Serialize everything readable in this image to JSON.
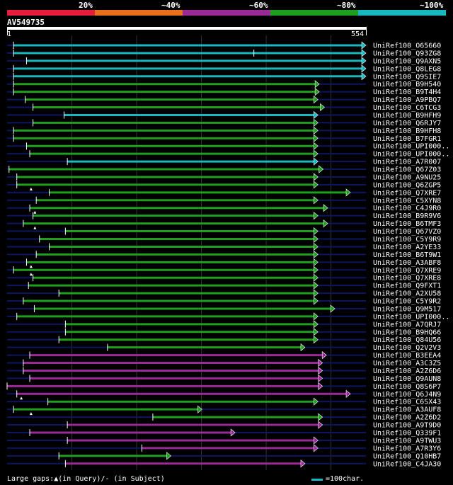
{
  "legend": [
    {
      "label": "20%",
      "color": "#e61e3c"
    },
    {
      "label": "~40%",
      "color": "#e8701e"
    },
    {
      "label": "~60%",
      "color": "#9a2a98"
    },
    {
      "label": "~80%",
      "color": "#1ea01e"
    },
    {
      "label": "~100%",
      "color": "#19b8bf"
    }
  ],
  "query": {
    "title": "AV549735",
    "start": "1",
    "end": "554",
    "length": 554
  },
  "colors": {
    "cyan": "#19b8bf",
    "green": "#1ea01e",
    "purple": "#9a2a98",
    "navy": "#0d1660",
    "grid": "#333333"
  },
  "hits": [
    {
      "name": "UniRef100_O65660",
      "start": 10,
      "end": 554,
      "color": "cyan"
    },
    {
      "name": "UniRef100_Q93ZG8",
      "start": 10,
      "end": 554,
      "color": "cyan",
      "mark": 381
    },
    {
      "name": "UniRef100_Q9AXN5",
      "start": 30,
      "end": 554,
      "color": "cyan"
    },
    {
      "name": "UniRef100_Q8LEG8",
      "start": 10,
      "end": 554,
      "color": "cyan"
    },
    {
      "name": "UniRef100_Q9SIE7",
      "start": 10,
      "end": 554,
      "color": "cyan"
    },
    {
      "name": "UniRef100_B9H540",
      "start": 10,
      "end": 482,
      "color": "green"
    },
    {
      "name": "UniRef100_B9T4H4",
      "start": 10,
      "end": 482,
      "color": "green"
    },
    {
      "name": "UniRef100_A9PBQ7",
      "start": 28,
      "end": 480,
      "color": "green"
    },
    {
      "name": "UniRef100_C6TCG3",
      "start": 40,
      "end": 490,
      "color": "green"
    },
    {
      "name": "UniRef100_B9HFH9",
      "start": 88,
      "end": 480,
      "color": "cyan"
    },
    {
      "name": "UniRef100_Q6RJY7",
      "start": 40,
      "end": 480,
      "color": "green"
    },
    {
      "name": "UniRef100_B9HFH8",
      "start": 10,
      "end": 480,
      "color": "green"
    },
    {
      "name": "UniRef100_B7FGR1",
      "start": 10,
      "end": 480,
      "color": "green"
    },
    {
      "name": "UniRef100_UPI000..",
      "start": 30,
      "end": 480,
      "color": "green"
    },
    {
      "name": "UniRef100_UPI000..",
      "start": 35,
      "end": 480,
      "color": "green"
    },
    {
      "name": "UniRef100_A7R007",
      "start": 93,
      "end": 480,
      "color": "cyan"
    },
    {
      "name": "UniRef100_Q67Z03",
      "start": 3,
      "end": 488,
      "color": "green"
    },
    {
      "name": "UniRef100_A9NU25",
      "start": 15,
      "end": 480,
      "color": "green"
    },
    {
      "name": "UniRef100_Q6ZGP5",
      "start": 15,
      "end": 480,
      "color": "green",
      "gapq": 37
    },
    {
      "name": "UniRef100_Q7XRE7",
      "start": 65,
      "end": 530,
      "color": "green"
    },
    {
      "name": "UniRef100_C5XYN8",
      "start": 45,
      "end": 480,
      "color": "green"
    },
    {
      "name": "UniRef100_C4J9R0",
      "start": 35,
      "end": 495,
      "color": "green",
      "gapq": 43
    },
    {
      "name": "UniRef100_B9R9V6",
      "start": 40,
      "end": 480,
      "color": "green"
    },
    {
      "name": "UniRef100_B6TMF3",
      "start": 25,
      "end": 495,
      "color": "green",
      "gapq": 43
    },
    {
      "name": "UniRef100_Q67VZ0",
      "start": 90,
      "end": 480,
      "color": "green"
    },
    {
      "name": "UniRef100_C5Y9R9",
      "start": 50,
      "end": 480,
      "color": "green"
    },
    {
      "name": "UniRef100_A2YE33",
      "start": 65,
      "end": 480,
      "color": "green"
    },
    {
      "name": "UniRef100_B6T9W1",
      "start": 45,
      "end": 480,
      "color": "green"
    },
    {
      "name": "UniRef100_A3ABF8",
      "start": 30,
      "end": 480,
      "color": "green",
      "gapq": 37
    },
    {
      "name": "UniRef100_Q7XRE9",
      "start": 10,
      "end": 480,
      "color": "green",
      "gapq": 37
    },
    {
      "name": "UniRef100_Q7XRE8",
      "start": 40,
      "end": 480,
      "color": "green"
    },
    {
      "name": "UniRef100_Q9FXT1",
      "start": 33,
      "end": 480,
      "color": "green"
    },
    {
      "name": "UniRef100_A2XU58",
      "start": 80,
      "end": 480,
      "color": "green"
    },
    {
      "name": "UniRef100_C5Y9R2",
      "start": 25,
      "end": 480,
      "color": "green"
    },
    {
      "name": "UniRef100_Q9M517",
      "start": 42,
      "end": 506,
      "color": "green"
    },
    {
      "name": "UniRef100_UPI000..",
      "start": 15,
      "end": 480,
      "color": "green"
    },
    {
      "name": "UniRef100_A7QRJ7",
      "start": 90,
      "end": 480,
      "color": "green"
    },
    {
      "name": "UniRef100_B9HQ66",
      "start": 90,
      "end": 480,
      "color": "green"
    },
    {
      "name": "UniRef100_Q84U56",
      "start": 80,
      "end": 480,
      "color": "green"
    },
    {
      "name": "UniRef100_Q2V2V3",
      "start": 155,
      "end": 460,
      "color": "green"
    },
    {
      "name": "UniRef100_B3EEA4",
      "start": 35,
      "end": 493,
      "color": "purple"
    },
    {
      "name": "UniRef100_A3C3Z5",
      "start": 25,
      "end": 487,
      "color": "purple"
    },
    {
      "name": "UniRef100_A2Z6D6",
      "start": 25,
      "end": 487,
      "color": "purple"
    },
    {
      "name": "UniRef100_Q9AUN8",
      "start": 35,
      "end": 487,
      "color": "purple"
    },
    {
      "name": "UniRef100_Q8S6P7",
      "start": 0,
      "end": 487,
      "color": "purple"
    },
    {
      "name": "UniRef100_Q6J4N9",
      "start": 15,
      "end": 530,
      "color": "purple",
      "gapq": 22
    },
    {
      "name": "UniRef100_C6SX43",
      "start": 63,
      "end": 480,
      "color": "green"
    },
    {
      "name": "UniRef100_A3AUF8",
      "start": 10,
      "end": 301,
      "color": "green",
      "gapq": 37
    },
    {
      "name": "UniRef100_A2Z6D2",
      "start": 225,
      "end": 487,
      "color": "green"
    },
    {
      "name": "UniRef100_A9T9D0",
      "start": 93,
      "end": 487,
      "color": "purple"
    },
    {
      "name": "UniRef100_Q339F1",
      "start": 35,
      "end": 352,
      "color": "purple"
    },
    {
      "name": "UniRef100_A9TWU3",
      "start": 93,
      "end": 480,
      "color": "purple"
    },
    {
      "name": "UniRef100_A7R3Y6",
      "start": 208,
      "end": 480,
      "color": "purple"
    },
    {
      "name": "UniRef100_Q10HB7",
      "start": 80,
      "end": 253,
      "color": "green"
    },
    {
      "name": "UniRef100_C4JA30",
      "start": 90,
      "end": 460,
      "color": "purple"
    }
  ],
  "footer": {
    "gaps_text": "Large gaps:▲(in Query)/- (in Subject)",
    "scale_text": "=100char."
  }
}
